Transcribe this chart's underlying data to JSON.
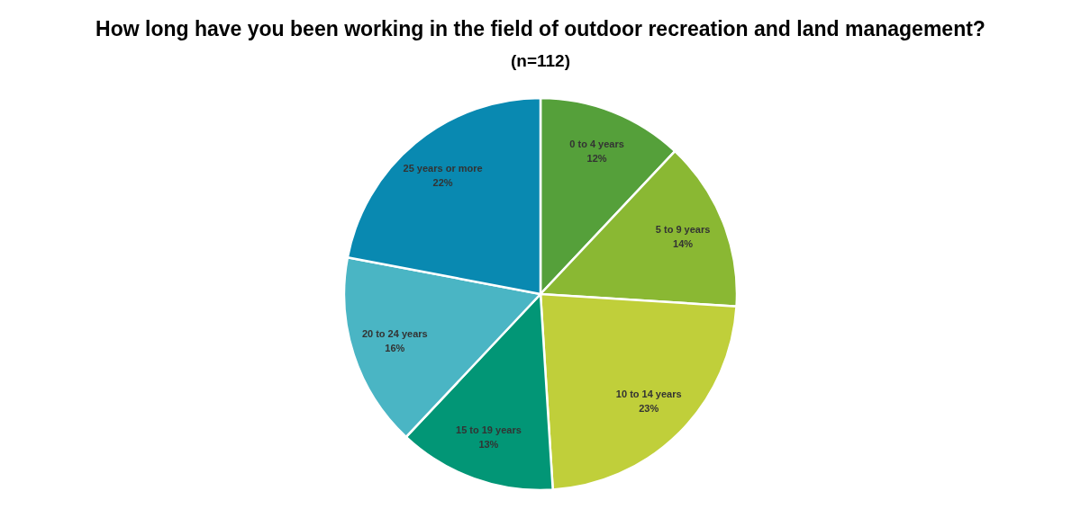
{
  "chart_data": {
    "type": "pie",
    "title": "How long have you been working in the field of outdoor recreation and land management?",
    "subtitle": "(n=112)",
    "categories": [
      "0 to 4 years",
      "5 to 9 years",
      "10 to 14 years",
      "15 to 19 years",
      "20 to 24 years",
      "25 years or more"
    ],
    "values": [
      12,
      14,
      23,
      13,
      16,
      22
    ],
    "value_labels": [
      "12%",
      "14%",
      "23%",
      "13%",
      "16%",
      "22%"
    ],
    "colors": [
      "#55a03a",
      "#8ab833",
      "#c0cf3a",
      "#029676",
      "#4ab5c4",
      "#0989b1"
    ]
  }
}
